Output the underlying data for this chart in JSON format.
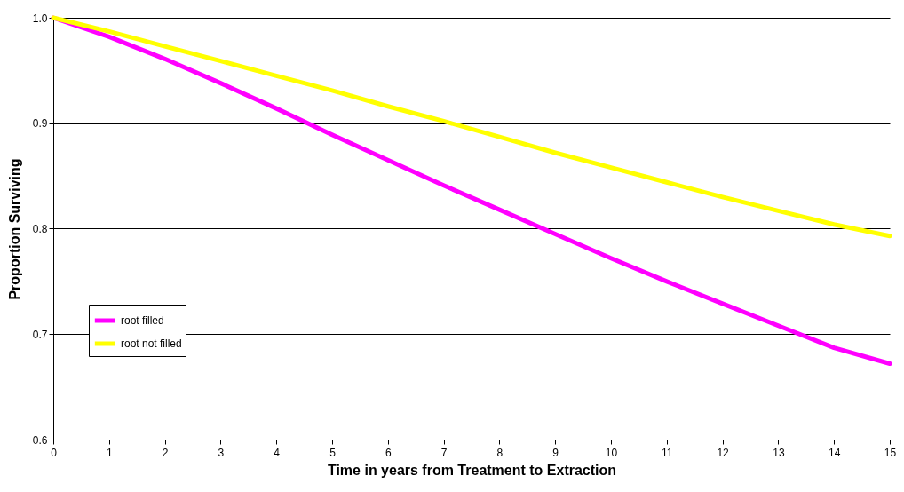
{
  "chart_data": {
    "type": "line",
    "xlabel": "Time in years from Treatment to Extraction",
    "ylabel": "Proportion Surviving",
    "x": [
      0,
      1,
      2,
      3,
      4,
      5,
      6,
      7,
      8,
      9,
      10,
      11,
      12,
      13,
      14,
      15
    ],
    "series": [
      {
        "name": "root filled",
        "color": "#ff00ff",
        "values": [
          1.0,
          0.982,
          0.961,
          0.938,
          0.914,
          0.889,
          0.865,
          0.841,
          0.818,
          0.795,
          0.772,
          0.75,
          0.729,
          0.708,
          0.687,
          0.672
        ]
      },
      {
        "name": "root not filled",
        "color": "#ffff00",
        "values": [
          1.0,
          0.987,
          0.973,
          0.959,
          0.945,
          0.931,
          0.916,
          0.902,
          0.887,
          0.872,
          0.858,
          0.844,
          0.83,
          0.817,
          0.804,
          0.793
        ]
      }
    ],
    "xlim": [
      0,
      15
    ],
    "xticks": [
      0,
      1,
      2,
      3,
      4,
      5,
      6,
      7,
      8,
      9,
      10,
      11,
      12,
      13,
      14,
      15
    ],
    "ylim": [
      0.6,
      1.0
    ],
    "yticks": [
      0.6,
      0.7,
      0.8,
      0.9,
      {
        "value": 1.0,
        "label": "1.0"
      }
    ],
    "grid": "y",
    "legend": "left",
    "marker": "none",
    "line_style": "solid"
  }
}
